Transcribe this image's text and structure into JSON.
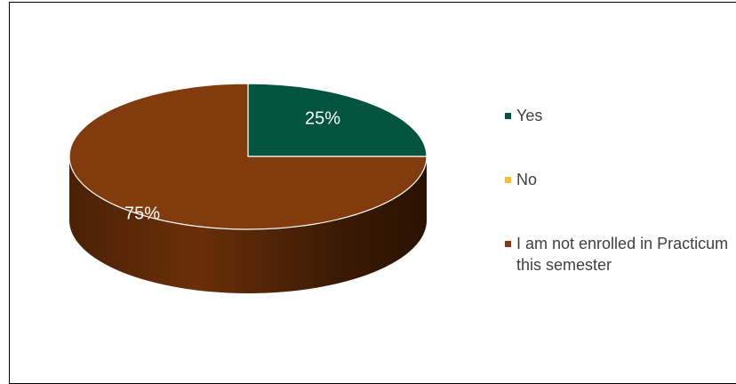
{
  "chart_data": {
    "type": "pie",
    "title": "",
    "series": [
      {
        "categories": [
          "Yes",
          "No",
          "I am not enrolled in Practicum this semester"
        ],
        "values": [
          25,
          0,
          75
        ],
        "data_labels": [
          "25%",
          "",
          "75%"
        ],
        "colors": [
          "#03543e",
          "#f5c131",
          "#823b0d"
        ]
      }
    ],
    "legend": {
      "position": "right",
      "items": [
        {
          "label": "Yes",
          "color": "#03543e"
        },
        {
          "label": "No",
          "color": "#f5c131"
        },
        {
          "label": "I am not enrolled in Practicum this semester",
          "color": "#823b0d"
        }
      ]
    },
    "style": "3d"
  }
}
